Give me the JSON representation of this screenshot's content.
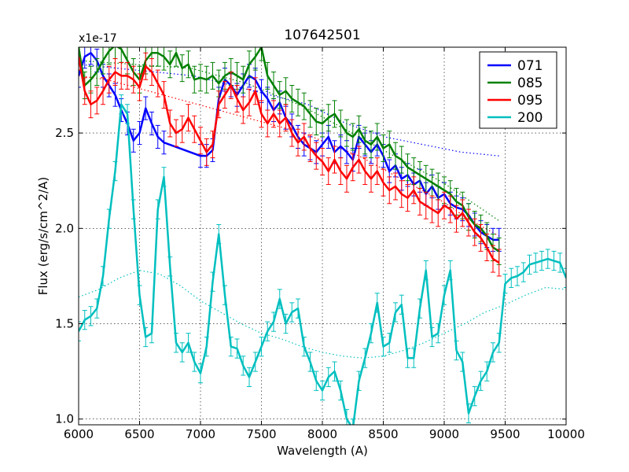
{
  "chart_data": {
    "type": "line",
    "title": "107642501",
    "xlabel": "Wavelength (A)",
    "ylabel": "Flux (erg/s/cm^2/A)",
    "y_multiplier_label": "x1e-17",
    "xlim": [
      6000,
      10000
    ],
    "ylim": [
      0.97,
      2.95
    ],
    "xticks": [
      6000,
      6500,
      7000,
      7500,
      8000,
      8500,
      9000,
      9500,
      10000
    ],
    "xtick_labels": [
      "6000",
      "6500",
      "7000",
      "7500",
      "8000",
      "8500",
      "9000",
      "9500",
      "10000"
    ],
    "yticks": [
      1.0,
      1.5,
      2.0,
      2.5
    ],
    "ytick_labels": [
      "1.0",
      "1.5",
      "2.0",
      "2.5"
    ],
    "grid": true,
    "legend_position": "top-right",
    "series": [
      {
        "name": "071",
        "color": "#0000ff",
        "x": [
          6000,
          6050,
          6100,
          6150,
          6200,
          6250,
          6300,
          6350,
          6400,
          6450,
          6500,
          6550,
          6600,
          6650,
          6700,
          7000,
          7050,
          7100,
          7150,
          7200,
          7250,
          7300,
          7350,
          7400,
          7450,
          7500,
          7550,
          7600,
          7650,
          7700,
          7750,
          7800,
          7850,
          7900,
          7950,
          8000,
          8050,
          8100,
          8150,
          8200,
          8250,
          8300,
          8350,
          8400,
          8450,
          8500,
          8550,
          8600,
          8650,
          8700,
          8750,
          8800,
          8850,
          8900,
          8950,
          9000,
          9050,
          9100,
          9150,
          9200,
          9250,
          9300,
          9350,
          9400,
          9450
        ],
        "y": [
          2.8,
          2.9,
          2.92,
          2.88,
          2.8,
          2.75,
          2.7,
          2.62,
          2.55,
          2.46,
          2.5,
          2.63,
          2.55,
          2.48,
          2.45,
          2.38,
          2.38,
          2.41,
          2.68,
          2.78,
          2.75,
          2.7,
          2.75,
          2.8,
          2.78,
          2.72,
          2.68,
          2.62,
          2.66,
          2.58,
          2.54,
          2.48,
          2.44,
          2.42,
          2.4,
          2.44,
          2.48,
          2.4,
          2.43,
          2.4,
          2.36,
          2.48,
          2.44,
          2.4,
          2.44,
          2.38,
          2.3,
          2.33,
          2.26,
          2.28,
          2.23,
          2.25,
          2.18,
          2.22,
          2.16,
          2.18,
          2.13,
          2.11,
          2.1,
          2.07,
          2.02,
          1.98,
          1.96,
          1.94,
          1.94
        ],
        "err": 0.06,
        "smooth_y": [
          2.86,
          2.84,
          2.82,
          2.8,
          2.75,
          2.7,
          2.65,
          2.55,
          2.48,
          2.44,
          2.4,
          2.38
        ]
      },
      {
        "name": "085",
        "color": "#008000",
        "x": [
          6000,
          6050,
          6100,
          6150,
          6200,
          6250,
          6300,
          6350,
          6400,
          6450,
          6500,
          6550,
          6600,
          6650,
          6700,
          6750,
          6800,
          6850,
          6900,
          6950,
          7000,
          7050,
          7100,
          7150,
          7200,
          7250,
          7300,
          7350,
          7400,
          7450,
          7500,
          7550,
          7600,
          7650,
          7700,
          7750,
          7800,
          7850,
          7900,
          7950,
          8000,
          8050,
          8100,
          8150,
          8200,
          8250,
          8300,
          8350,
          8400,
          8450,
          8500,
          8550,
          8600,
          8650,
          8700,
          8750,
          8800,
          8850,
          8900,
          8950,
          9000,
          9050,
          9100,
          9150,
          9200,
          9250,
          9300,
          9350,
          9400,
          9450
        ],
        "y": [
          2.95,
          2.75,
          2.78,
          2.82,
          2.88,
          2.93,
          2.96,
          2.94,
          2.88,
          2.82,
          2.78,
          2.88,
          2.92,
          2.92,
          2.9,
          2.86,
          2.92,
          2.84,
          2.86,
          2.78,
          2.79,
          2.78,
          2.8,
          2.76,
          2.8,
          2.82,
          2.8,
          2.78,
          2.86,
          2.9,
          2.95,
          2.8,
          2.75,
          2.7,
          2.72,
          2.68,
          2.66,
          2.64,
          2.6,
          2.56,
          2.55,
          2.58,
          2.6,
          2.55,
          2.5,
          2.48,
          2.52,
          2.46,
          2.44,
          2.48,
          2.42,
          2.44,
          2.38,
          2.36,
          2.32,
          2.3,
          2.28,
          2.26,
          2.24,
          2.22,
          2.2,
          2.18,
          2.14,
          2.12,
          2.06,
          2.02,
          2.0,
          1.96,
          1.9,
          1.88
        ],
        "err": 0.07,
        "smooth_y": [
          2.88,
          2.87,
          2.86,
          2.85,
          2.84,
          2.8,
          2.76,
          2.7,
          2.64,
          2.56,
          2.48,
          2.4,
          2.32,
          2.24,
          2.14,
          2.04
        ]
      },
      {
        "name": "095",
        "color": "#ff0000",
        "x": [
          6000,
          6050,
          6100,
          6150,
          6200,
          6250,
          6300,
          6350,
          6400,
          6450,
          6500,
          6550,
          6600,
          6650,
          6700,
          6750,
          6800,
          6850,
          6900,
          6950,
          7000,
          7050,
          7100,
          7150,
          7200,
          7250,
          7300,
          7350,
          7400,
          7450,
          7500,
          7550,
          7600,
          7650,
          7700,
          7750,
          7800,
          7850,
          7900,
          7950,
          8000,
          8050,
          8100,
          8150,
          8200,
          8250,
          8300,
          8350,
          8400,
          8450,
          8500,
          8550,
          8600,
          8650,
          8700,
          8750,
          8800,
          8850,
          8900,
          8950,
          9000,
          9050,
          9100,
          9150,
          9200,
          9250,
          9300,
          9350,
          9400,
          9450
        ],
        "y": [
          2.9,
          2.72,
          2.65,
          2.67,
          2.72,
          2.78,
          2.82,
          2.8,
          2.8,
          2.78,
          2.74,
          2.85,
          2.82,
          2.76,
          2.7,
          2.55,
          2.5,
          2.52,
          2.58,
          2.52,
          2.46,
          2.4,
          2.44,
          2.65,
          2.7,
          2.75,
          2.68,
          2.62,
          2.66,
          2.72,
          2.6,
          2.55,
          2.6,
          2.55,
          2.58,
          2.5,
          2.45,
          2.48,
          2.42,
          2.38,
          2.35,
          2.3,
          2.36,
          2.3,
          2.26,
          2.32,
          2.36,
          2.3,
          2.26,
          2.3,
          2.24,
          2.2,
          2.22,
          2.18,
          2.16,
          2.2,
          2.14,
          2.12,
          2.1,
          2.08,
          2.12,
          2.1,
          2.05,
          2.08,
          2.03,
          1.98,
          1.95,
          1.9,
          1.84,
          1.82
        ],
        "err": 0.07,
        "smooth_y": [
          2.8,
          2.78,
          2.74,
          2.7,
          2.66,
          2.62,
          2.58,
          2.54,
          2.5,
          2.44,
          2.38,
          2.3,
          2.22,
          2.14,
          2.04,
          1.96
        ]
      },
      {
        "name": "200",
        "color": "#00bfbf",
        "x": [
          6000,
          6050,
          6100,
          6150,
          6200,
          6250,
          6300,
          6350,
          6400,
          6450,
          6500,
          6550,
          6600,
          6650,
          6700,
          6750,
          6800,
          6850,
          6900,
          6950,
          7000,
          7050,
          7100,
          7150,
          7200,
          7250,
          7300,
          7350,
          7400,
          7450,
          7500,
          7550,
          7600,
          7650,
          7700,
          7750,
          7800,
          7850,
          7900,
          7950,
          8000,
          8050,
          8100,
          8150,
          8200,
          8250,
          8300,
          8350,
          8400,
          8450,
          8500,
          8550,
          8600,
          8650,
          8700,
          8750,
          8800,
          8850,
          8900,
          8950,
          9000,
          9050,
          9100,
          9150,
          9200,
          9250,
          9300,
          9350,
          9400,
          9450,
          9500,
          9550,
          9600,
          9650,
          9700,
          9750,
          9800,
          9850,
          9900,
          9950,
          10000
        ],
        "y": [
          1.46,
          1.52,
          1.54,
          1.58,
          1.75,
          2.05,
          2.3,
          2.65,
          2.6,
          2.1,
          1.65,
          1.43,
          1.45,
          2.1,
          2.27,
          1.8,
          1.4,
          1.35,
          1.4,
          1.3,
          1.24,
          1.38,
          1.72,
          1.97,
          1.65,
          1.38,
          1.37,
          1.28,
          1.22,
          1.3,
          1.38,
          1.46,
          1.51,
          1.63,
          1.5,
          1.56,
          1.58,
          1.38,
          1.3,
          1.2,
          1.15,
          1.22,
          1.25,
          1.15,
          1.0,
          0.95,
          1.2,
          1.32,
          1.45,
          1.61,
          1.38,
          1.4,
          1.56,
          1.6,
          1.32,
          1.32,
          1.58,
          1.78,
          1.43,
          1.45,
          1.65,
          1.78,
          1.36,
          1.3,
          1.03,
          1.12,
          1.2,
          1.25,
          1.35,
          1.4,
          1.71,
          1.74,
          1.75,
          1.77,
          1.81,
          1.82,
          1.83,
          1.84,
          1.83,
          1.82,
          1.74
        ],
        "err": 0.05,
        "smooth_y": [
          1.64,
          1.68,
          1.74,
          1.78,
          1.76,
          1.7,
          1.62,
          1.56,
          1.5,
          1.45,
          1.42,
          1.38,
          1.35,
          1.33,
          1.32,
          1.33,
          1.36,
          1.4,
          1.45,
          1.5,
          1.56,
          1.6,
          1.65,
          1.69,
          1.68
        ]
      }
    ]
  }
}
